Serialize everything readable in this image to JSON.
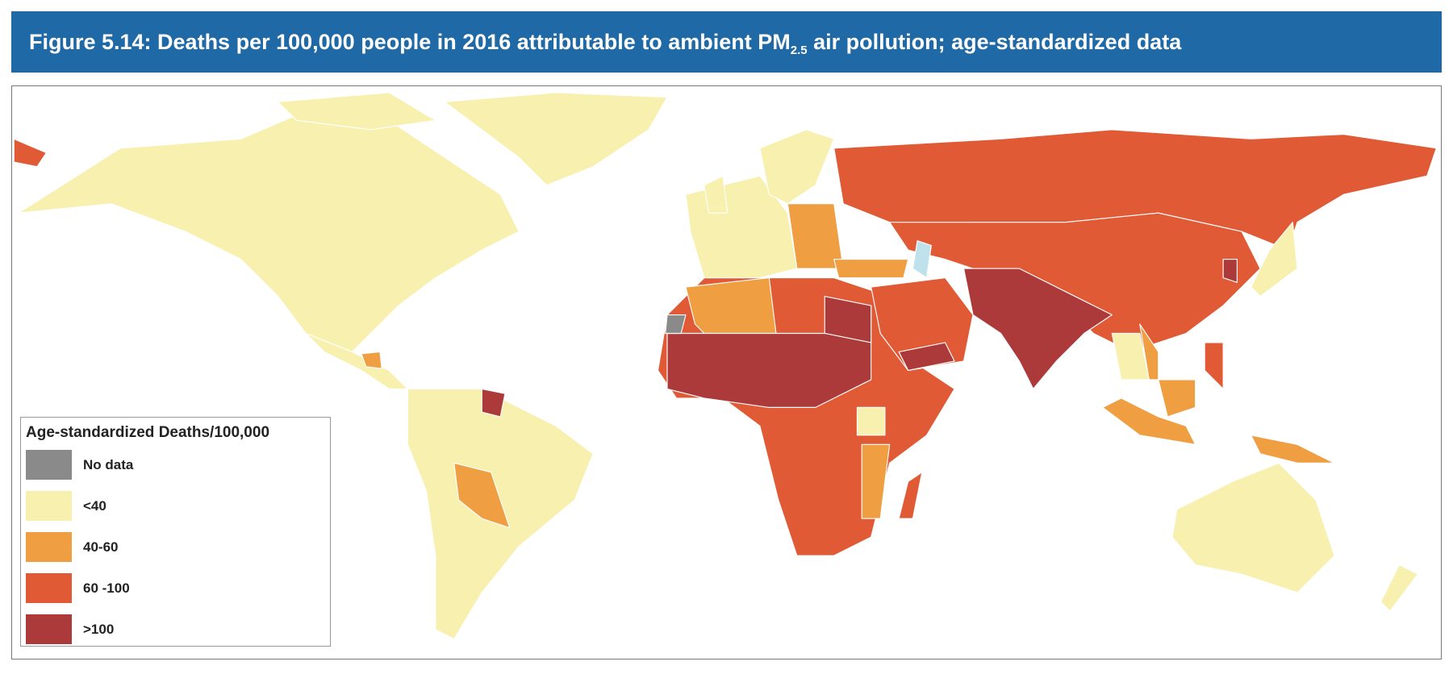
{
  "header": {
    "title_main": "Figure 5.14: Deaths per 100,000 people in 2016 attributable to ambient PM",
    "title_sub": "2.5",
    "title_end": " air pollution; age-standardized data"
  },
  "legend": {
    "title": "Age-standardized Deaths/100,000",
    "items": [
      {
        "label": "No data",
        "color": "#8a8a8a"
      },
      {
        "label": "<40",
        "color": "#f7f0ae"
      },
      {
        "label": "40-60",
        "color": "#ef9e42"
      },
      {
        "label": "60 -100",
        "color": "#e05a35"
      },
      {
        "label": ">100",
        "color": "#ad3a3a"
      }
    ]
  }
}
